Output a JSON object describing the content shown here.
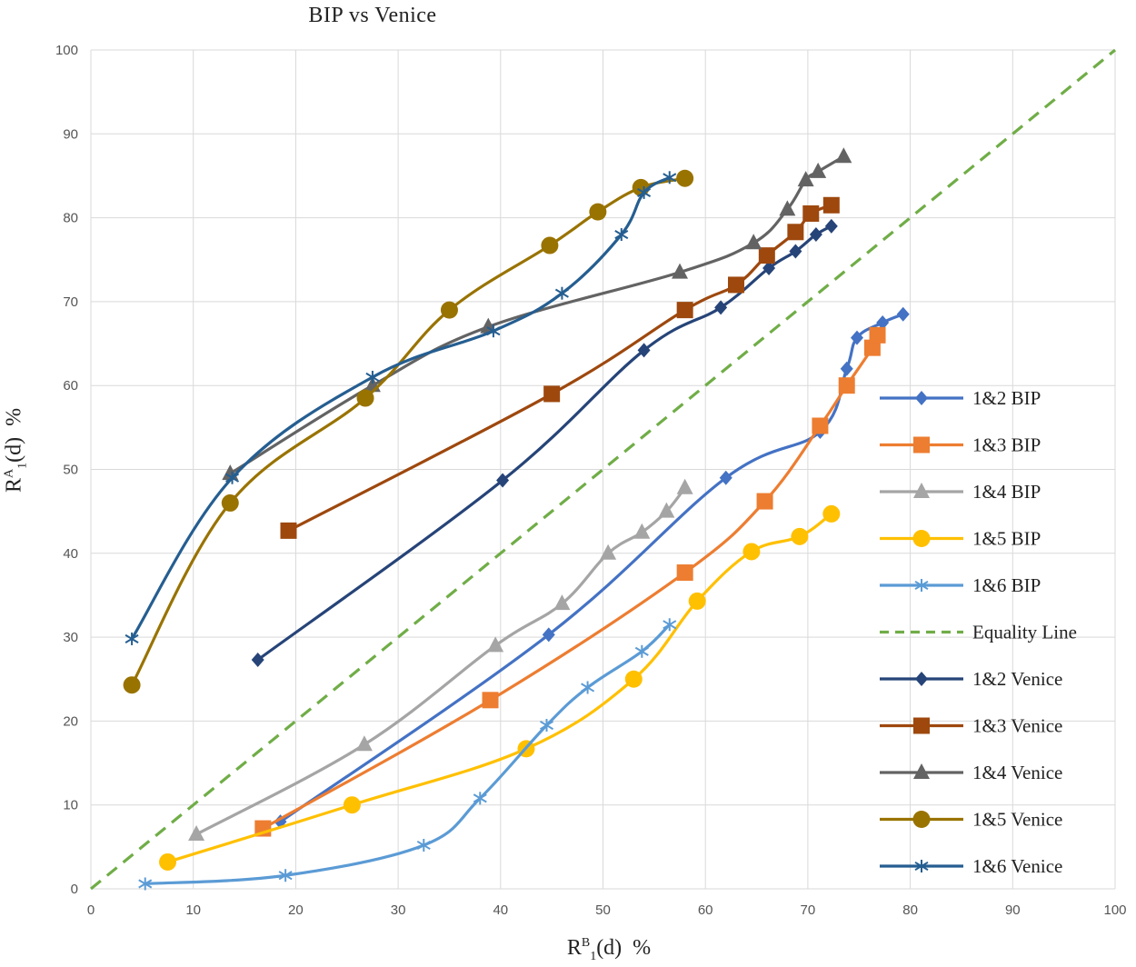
{
  "chart_data": {
    "type": "line",
    "title": "BIP vs Venice",
    "xlabel": {
      "base": "R",
      "sup": "B",
      "sub": "1",
      "rest": "(d)  %"
    },
    "ylabel": {
      "base": "R",
      "sup": "A",
      "sub": "1",
      "rest": "(d)  %"
    },
    "xlim": [
      0,
      100
    ],
    "ylim": [
      0,
      100
    ],
    "xticks": [
      0,
      10,
      20,
      30,
      40,
      50,
      60,
      70,
      80,
      90,
      100
    ],
    "yticks": [
      0,
      10,
      20,
      30,
      40,
      50,
      60,
      70,
      80,
      90,
      100
    ],
    "grid": true,
    "legend_position": "right",
    "series": [
      {
        "name": "1&2 BIP",
        "color": "#4472C4",
        "marker": "diamond",
        "style": "solid",
        "points": [
          [
            18.5,
            8
          ],
          [
            44.7,
            30.3
          ],
          [
            62,
            49
          ],
          [
            71.2,
            54.5
          ],
          [
            73.8,
            62
          ],
          [
            74.8,
            65.7
          ],
          [
            77.3,
            67.5
          ],
          [
            79.3,
            68.5
          ]
        ]
      },
      {
        "name": "1&3 BIP",
        "color": "#ED7D31",
        "marker": "square",
        "style": "solid",
        "points": [
          [
            16.8,
            7.2
          ],
          [
            39,
            22.5
          ],
          [
            58,
            37.7
          ],
          [
            65.8,
            46.2
          ],
          [
            71.2,
            55.2
          ],
          [
            73.8,
            60
          ],
          [
            76.3,
            64.5
          ],
          [
            76.8,
            66
          ]
        ]
      },
      {
        "name": "1&4 BIP",
        "color": "#A5A5A5",
        "marker": "triangle",
        "style": "solid",
        "points": [
          [
            10.3,
            6.5
          ],
          [
            26.7,
            17.2
          ],
          [
            39.5,
            29
          ],
          [
            46,
            34
          ],
          [
            50.5,
            40
          ],
          [
            53.8,
            42.5
          ],
          [
            56.2,
            45
          ],
          [
            58,
            47.8
          ]
        ]
      },
      {
        "name": "1&5 BIP",
        "color": "#FFC000",
        "marker": "circle",
        "style": "solid",
        "points": [
          [
            7.5,
            3.2
          ],
          [
            25.5,
            10
          ],
          [
            42.5,
            16.7
          ],
          [
            53,
            25
          ],
          [
            59.2,
            34.3
          ],
          [
            64.5,
            40.2
          ],
          [
            69.2,
            42
          ],
          [
            72.3,
            44.7
          ]
        ]
      },
      {
        "name": "1&6 BIP",
        "color": "#5B9BD5",
        "marker": "star",
        "style": "solid",
        "points": [
          [
            5.3,
            0.6
          ],
          [
            19,
            1.6
          ],
          [
            32.5,
            5.2
          ],
          [
            38,
            10.8
          ],
          [
            44.5,
            19.5
          ],
          [
            48.5,
            24
          ],
          [
            53.8,
            28.3
          ],
          [
            56.5,
            31.5
          ]
        ]
      },
      {
        "name": "Equality Line",
        "color": "#70AD47",
        "marker": "none",
        "style": "dashed",
        "points": [
          [
            0,
            0
          ],
          [
            100,
            100
          ]
        ]
      },
      {
        "name": "1&2 Venice",
        "color": "#264478",
        "marker": "diamond",
        "style": "solid",
        "points": [
          [
            16.3,
            27.3
          ],
          [
            40.2,
            48.7
          ],
          [
            54,
            64.2
          ],
          [
            61.5,
            69.3
          ],
          [
            66.2,
            74
          ],
          [
            68.8,
            76
          ],
          [
            70.8,
            78
          ],
          [
            72.3,
            79
          ]
        ]
      },
      {
        "name": "1&3 Venice",
        "color": "#9E480E",
        "marker": "square",
        "style": "solid",
        "points": [
          [
            19.3,
            42.7
          ],
          [
            45,
            59
          ],
          [
            58,
            69
          ],
          [
            63,
            72
          ],
          [
            66,
            75.5
          ],
          [
            68.8,
            78.3
          ],
          [
            70.3,
            80.5
          ],
          [
            72.3,
            81.5
          ]
        ]
      },
      {
        "name": "1&4 Venice",
        "color": "#636363",
        "marker": "triangle",
        "style": "solid",
        "points": [
          [
            13.6,
            49.5
          ],
          [
            27.5,
            60
          ],
          [
            38.8,
            67
          ],
          [
            57.5,
            73.5
          ],
          [
            64.7,
            77
          ],
          [
            68,
            81
          ],
          [
            69.8,
            84.5
          ],
          [
            71,
            85.5
          ],
          [
            73.5,
            87.3
          ]
        ]
      },
      {
        "name": "1&5 Venice",
        "color": "#997300",
        "marker": "circle",
        "style": "solid",
        "points": [
          [
            4,
            24.3
          ],
          [
            13.6,
            46
          ],
          [
            26.8,
            58.5
          ],
          [
            35,
            69
          ],
          [
            44.8,
            76.7
          ],
          [
            49.5,
            80.7
          ],
          [
            53.7,
            83.6
          ],
          [
            58,
            84.7
          ]
        ]
      },
      {
        "name": "1&6 Venice",
        "color": "#255E91",
        "marker": "star",
        "style": "solid",
        "points": [
          [
            4,
            29.8
          ],
          [
            13.8,
            49
          ],
          [
            27.5,
            61
          ],
          [
            39.3,
            66.5
          ],
          [
            46,
            71
          ],
          [
            51.8,
            78
          ],
          [
            54,
            83
          ],
          [
            56.5,
            84.8
          ]
        ]
      }
    ]
  }
}
